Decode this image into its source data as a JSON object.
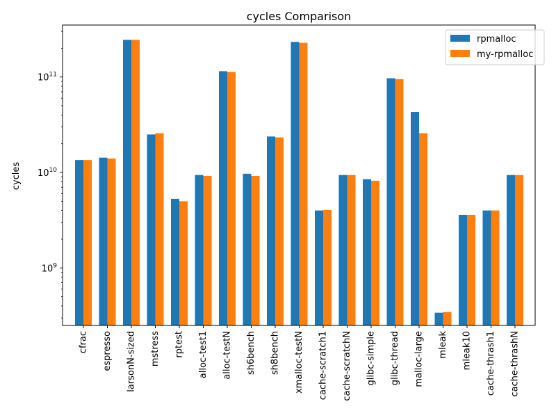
{
  "chart_data": {
    "type": "bar",
    "title": "cycles Comparison",
    "xlabel": "",
    "ylabel": "cycles",
    "yscale": "log",
    "ylim": [
      250000000,
      350000000000
    ],
    "y_tick_labels": [
      {
        "value": 1000000000,
        "base": "10",
        "exp": "9"
      },
      {
        "value": 10000000000,
        "base": "10",
        "exp": "10"
      },
      {
        "value": 100000000000,
        "base": "10",
        "exp": "11"
      }
    ],
    "grid": false,
    "legend_position": "top-right",
    "categories": [
      "cfrac",
      "espresso",
      "larsonN-sized",
      "mstress",
      "rptest",
      "alloc-test1",
      "alloc-testN",
      "sh6bench",
      "sh8bench",
      "xmalloc-testN",
      "cache-scratch1",
      "cache-scratchN",
      "glibc-simple",
      "glibc-thread",
      "malloc-large",
      "mleak",
      "mleak10",
      "cache-thrash1",
      "cache-thrashN"
    ],
    "series": [
      {
        "name": "rpmalloc",
        "color": "#1f77b4",
        "values": [
          13500000000,
          14300000000,
          245000000000,
          25000000000,
          5300000000,
          9400000000,
          115000000000,
          9700000000,
          23800000000,
          233000000000,
          4000000000,
          9400000000,
          8500000000,
          97000000000,
          43000000000,
          340000000,
          3600000000,
          4000000000,
          9400000000
        ]
      },
      {
        "name": "my-rpmalloc",
        "color": "#ff7f0e",
        "values": [
          13500000000,
          14000000000,
          245000000000,
          25800000000,
          5000000000,
          9200000000,
          113000000000,
          9200000000,
          23300000000,
          228000000000,
          4050000000,
          9400000000,
          8200000000,
          95000000000,
          25800000000,
          345000000,
          3600000000,
          4000000000,
          9400000000
        ]
      }
    ]
  }
}
